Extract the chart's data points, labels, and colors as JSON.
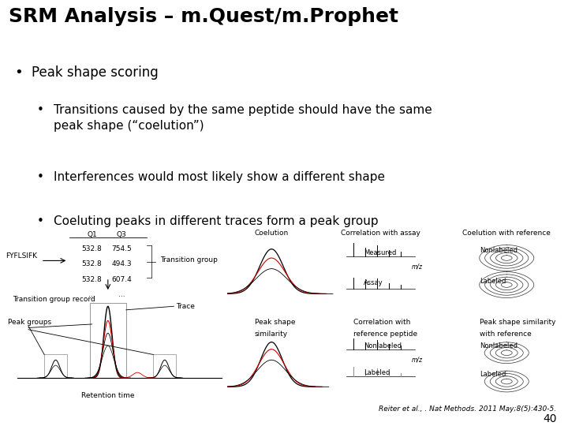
{
  "title": "SRM Analysis – m.Quest/m.Prophet",
  "bullet1": "Peak shape scoring",
  "sub_bullet1": "Transitions caused by the same peptide should have the same\npeak shape (“coelution”)",
  "sub_bullet2": "Interferences would most likely show a different shape",
  "sub_bullet3": "Coeluting peaks in different traces form a peak group",
  "citation": "Reiter et al., . Nat Methods. 2011 May;8(5):430-5.",
  "slide_number": "40",
  "bg_color": "#ffffff",
  "text_color": "#000000",
  "title_fontsize": 18,
  "body_fontsize": 12,
  "sub_body_fontsize": 11,
  "diagram_label_fontsize": 6.5,
  "red_color": "#cc0000"
}
